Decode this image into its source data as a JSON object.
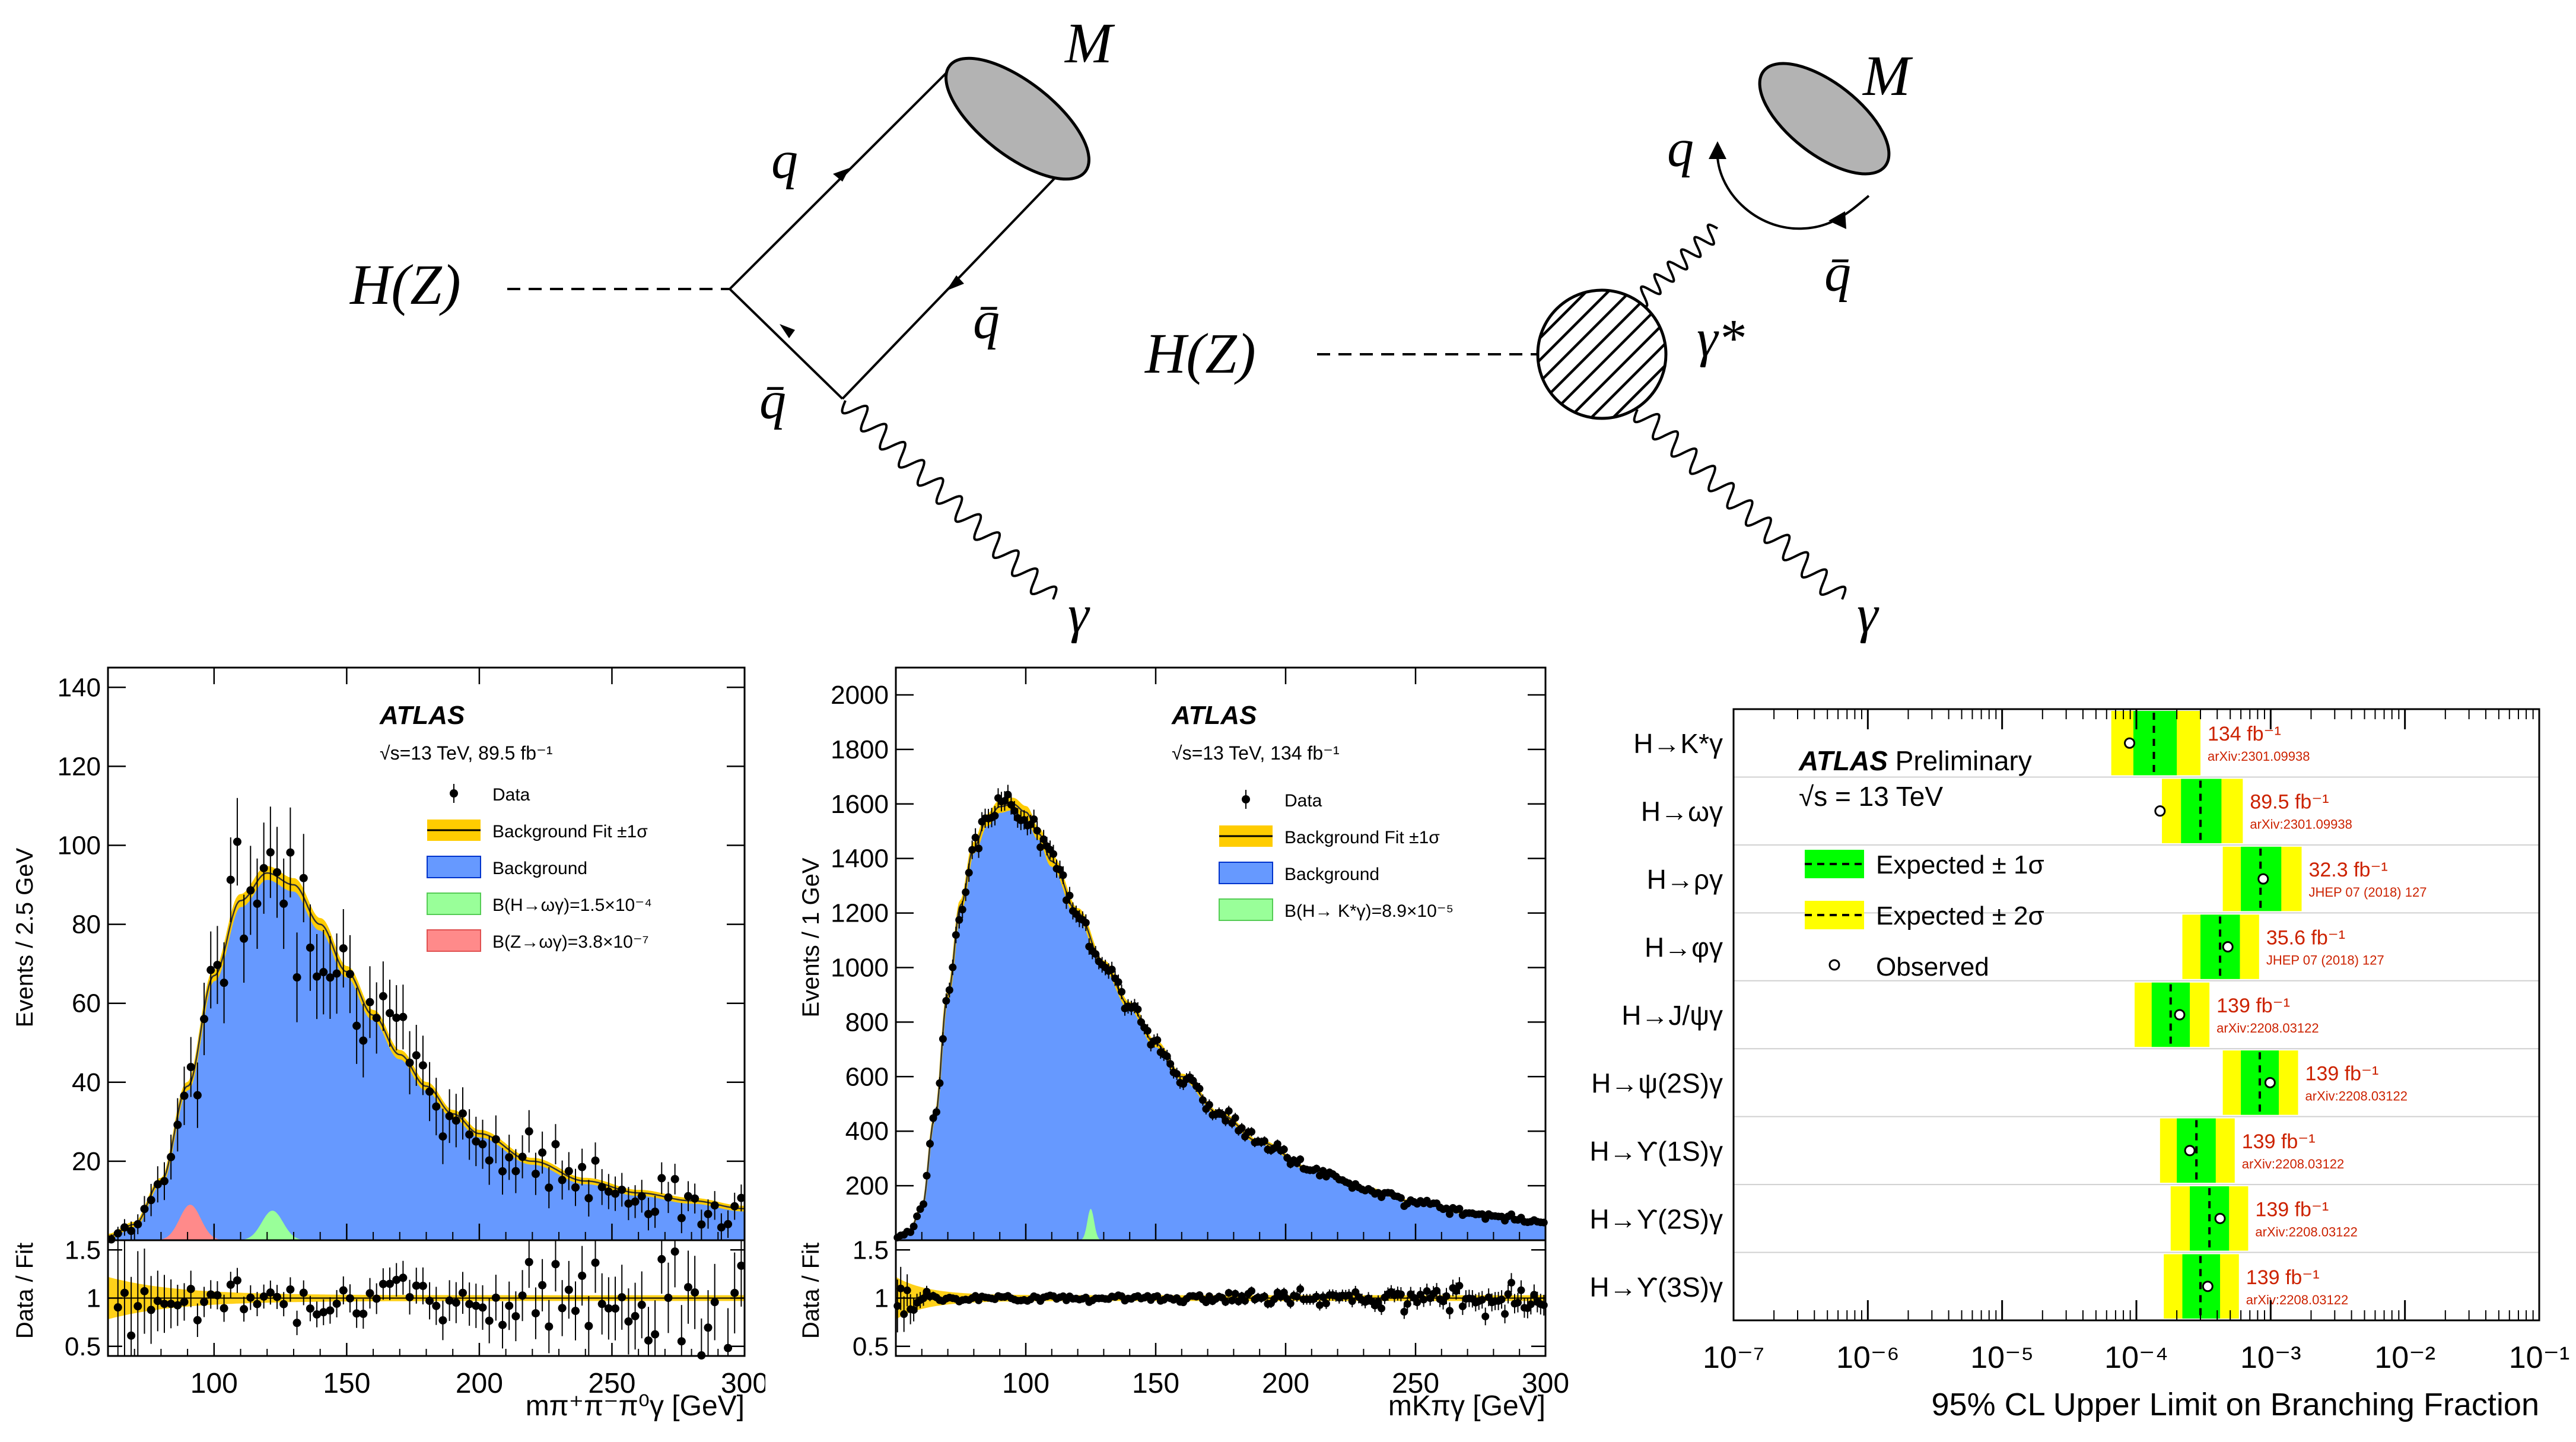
{
  "diagrams": {
    "left": {
      "higgs": "H(Z)",
      "quark": "q",
      "antiquark_top": "q̄",
      "antiquark_bottom": "q̄",
      "meson": "M",
      "photon": "γ"
    },
    "right": {
      "higgs": "H(Z)",
      "quark": "q",
      "antiquark": "q̄",
      "meson": "M",
      "virtual_photon": "γ*",
      "photon": "γ"
    }
  },
  "colors": {
    "background": "#6699ff",
    "band_1sigma_fit": "#ffcc00",
    "fit_line": "#333333",
    "signal_green": "#99ff99",
    "signal_red": "#ff8a8a",
    "band_expected_1sigma": "#00ff00",
    "band_expected_2sigma": "#ffff00",
    "ref_text": "#cc2200"
  },
  "chart_data": [
    {
      "type": "line",
      "panel": "omega",
      "atlas": "ATLAS",
      "energy": "√s=13 TeV, 89.5 fb⁻¹",
      "ylabel": "Events / 2.5 GeV",
      "xlabel": "mπ⁺π⁻π⁰γ [GeV]",
      "ratio_ylabel": "Data / Fit",
      "xlim": [
        60,
        300
      ],
      "ylim": [
        0,
        145
      ],
      "ratio_ylim": [
        0.4,
        1.6
      ],
      "xticks": [
        100,
        150,
        200,
        250,
        300
      ],
      "yticks": [
        20,
        40,
        60,
        80,
        100,
        120,
        140
      ],
      "ratio_yticks": [
        0.5,
        1,
        1.5
      ],
      "legend": [
        "Data",
        "Background Fit ±1σ",
        "Background",
        "B(H→ωγ)=1.5×10⁻⁴",
        "B(Z→ωγ)=3.8×10⁻⁷"
      ],
      "background_curve": {
        "x": [
          60,
          70,
          80,
          90,
          100,
          110,
          120,
          130,
          140,
          150,
          160,
          170,
          180,
          190,
          200,
          220,
          240,
          260,
          280,
          300
        ],
        "y": [
          1,
          4,
          15,
          39,
          67,
          86,
          93,
          90,
          80,
          68,
          57,
          47,
          39,
          32,
          27,
          20,
          15,
          12,
          10,
          8
        ]
      },
      "signals": [
        {
          "name": "Z",
          "center": 91,
          "sigma": 4,
          "amplitude": 9,
          "color": "red"
        },
        {
          "name": "H",
          "center": 122,
          "sigma": 4,
          "amplitude": 7.5,
          "color": "green"
        }
      ]
    },
    {
      "type": "line",
      "panel": "kstar",
      "atlas": "ATLAS",
      "energy": "√s=13 TeV, 134 fb⁻¹",
      "ylabel": "Events / 1 GeV",
      "xlabel": "mKπγ [GeV]",
      "ratio_ylabel": "Data / Fit",
      "xlim": [
        50,
        300
      ],
      "ylim": [
        0,
        2100
      ],
      "ratio_ylim": [
        0.4,
        1.6
      ],
      "xticks": [
        100,
        150,
        200,
        250,
        300
      ],
      "yticks": [
        200,
        400,
        600,
        800,
        1000,
        1200,
        1400,
        1600,
        1800,
        2000
      ],
      "ratio_yticks": [
        0.5,
        1,
        1.5
      ],
      "legend": [
        "Data",
        "Background Fit ±1σ",
        "Background",
        "B(H→ K*γ)=8.9×10⁻⁵"
      ],
      "background_curve": {
        "x": [
          50,
          55,
          60,
          65,
          70,
          75,
          80,
          85,
          90,
          95,
          100,
          105,
          110,
          120,
          130,
          140,
          150,
          160,
          175,
          190,
          210,
          230,
          250,
          270,
          300
        ],
        "y": [
          10,
          30,
          120,
          450,
          900,
          1230,
          1440,
          1540,
          1590,
          1600,
          1570,
          1490,
          1390,
          1200,
          1010,
          860,
          720,
          600,
          460,
          360,
          260,
          190,
          140,
          100,
          70
        ]
      },
      "signals": [
        {
          "name": "H",
          "center": 125,
          "sigma": 1.3,
          "amplitude": 115,
          "color": "green"
        }
      ]
    },
    {
      "type": "scatter",
      "panel": "limits",
      "title_bold": "ATLAS",
      "title_rest": " Preliminary",
      "energy": "√s = 13 TeV",
      "xlabel": "95% CL Upper Limit on Branching Fraction",
      "xscale": "log",
      "xlim_exponents": [
        -7,
        -1
      ],
      "xtick_labels": [
        "10⁻⁷",
        "10⁻⁶",
        "10⁻⁵",
        "10⁻⁴",
        "10⁻³",
        "10⁻²",
        "10⁻¹"
      ],
      "legend": [
        "Expected ± 1σ",
        "Expected ± 2σ",
        "Observed"
      ],
      "channels": [
        {
          "label": "H→K*γ",
          "lumi": "134 fb⁻¹",
          "ref": "arXiv:2301.09938",
          "exp": 0.000135,
          "s1": [
            9.5e-05,
            0.0002
          ],
          "s2": [
            6.5e-05,
            0.0003
          ],
          "obs": 8.9e-05
        },
        {
          "label": "H→ωγ",
          "lumi": "89.5 fb⁻¹",
          "ref": "arXiv:2301.09938",
          "exp": 0.0003,
          "s1": [
            0.000215,
            0.00043
          ],
          "s2": [
            0.000155,
            0.00062
          ],
          "obs": 0.00015
        },
        {
          "label": "H→ργ",
          "lumi": "32.3 fb⁻¹",
          "ref": "JHEP 07 (2018) 127",
          "exp": 0.00084,
          "s1": [
            0.0006,
            0.0012
          ],
          "s2": [
            0.00044,
            0.0017
          ],
          "obs": 0.00088
        },
        {
          "label": "H→φγ",
          "lumi": "35.6 fb⁻¹",
          "ref": "JHEP 07 (2018) 127",
          "exp": 0.00042,
          "s1": [
            0.0003,
            0.00059
          ],
          "s2": [
            0.00022,
            0.00082
          ],
          "obs": 0.00048
        },
        {
          "label": "H→J/ψγ",
          "lumi": "139 fb⁻¹",
          "ref": "arXiv:2208.03122",
          "exp": 0.00018,
          "s1": [
            0.00013,
            0.00025
          ],
          "s2": [
            9.7e-05,
            0.00035
          ],
          "obs": 0.00021
        },
        {
          "label": "H→ψ(2S)γ",
          "lumi": "139 fb⁻¹",
          "ref": "arXiv:2208.03122",
          "exp": 0.00083,
          "s1": [
            0.0006,
            0.00115
          ],
          "s2": [
            0.00044,
            0.0016
          ],
          "obs": 0.00099
        },
        {
          "label": "H→ϒ(1S)γ",
          "lumi": "139 fb⁻¹",
          "ref": "arXiv:2208.03122",
          "exp": 0.00028,
          "s1": [
            0.0002,
            0.00039
          ],
          "s2": [
            0.00015,
            0.00054
          ],
          "obs": 0.00025
        },
        {
          "label": "H→ϒ(2S)γ",
          "lumi": "139 fb⁻¹",
          "ref": "arXiv:2208.03122",
          "exp": 0.00035,
          "s1": [
            0.00025,
            0.00049
          ],
          "s2": [
            0.00018,
            0.00068
          ],
          "obs": 0.00042
        },
        {
          "label": "H→ϒ(3S)γ",
          "lumi": "139 fb⁻¹",
          "ref": "arXiv:2208.03122",
          "exp": 0.0003,
          "s1": [
            0.00022,
            0.00042
          ],
          "s2": [
            0.00016,
            0.00058
          ],
          "obs": 0.00034
        }
      ]
    }
  ]
}
